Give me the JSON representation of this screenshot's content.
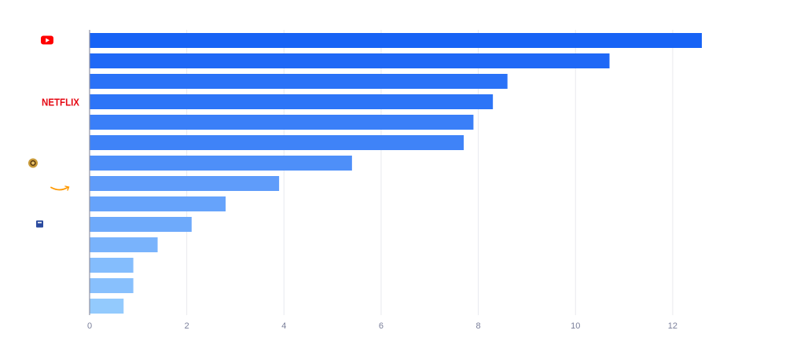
{
  "chart_data": {
    "type": "bar",
    "orientation": "horizontal",
    "title": "",
    "xlabel": "",
    "ylabel": "",
    "xlim": [
      0,
      12.6
    ],
    "xticks": [
      0,
      2,
      4,
      6,
      8,
      10,
      12
    ],
    "grid": true,
    "categories": [
      {
        "icon": "youtube-logo-icon",
        "text": ""
      },
      {
        "icon": "",
        "text": ""
      },
      {
        "icon": "",
        "text": ""
      },
      {
        "icon": "netflix-logo-icon",
        "text": "NETFLIX"
      },
      {
        "icon": "",
        "text": ""
      },
      {
        "icon": "",
        "text": ""
      },
      {
        "icon": "warner-bros-logo-icon",
        "text": ""
      },
      {
        "icon": "amazon-logo-icon",
        "text": ""
      },
      {
        "icon": "",
        "text": ""
      },
      {
        "icon": "square-app-logo-icon",
        "text": ""
      },
      {
        "icon": "",
        "text": ""
      },
      {
        "icon": "",
        "text": ""
      },
      {
        "icon": "",
        "text": ""
      },
      {
        "icon": "",
        "text": ""
      }
    ],
    "values": [
      12.6,
      10.7,
      8.6,
      8.3,
      7.9,
      7.7,
      5.4,
      3.9,
      2.8,
      2.1,
      1.4,
      0.9,
      0.9,
      0.7
    ],
    "colors": [
      "#1763f5",
      "#1f68f6",
      "#2a72f7",
      "#2d75f7",
      "#3a7ff8",
      "#3f83f8",
      "#4e8ff9",
      "#5f9cfa",
      "#66a3fb",
      "#6eaafb",
      "#79b3fc",
      "#84bdfd",
      "#88c0fd",
      "#93cafd"
    ]
  },
  "colors": {
    "grid": "#e8e9ee",
    "axis": "#8e91a4",
    "youtube": "#ff0000",
    "netflix": "#e50914",
    "amazon": "#ff9900",
    "warner": "#c89a3a",
    "square": "#2a4a9e"
  }
}
